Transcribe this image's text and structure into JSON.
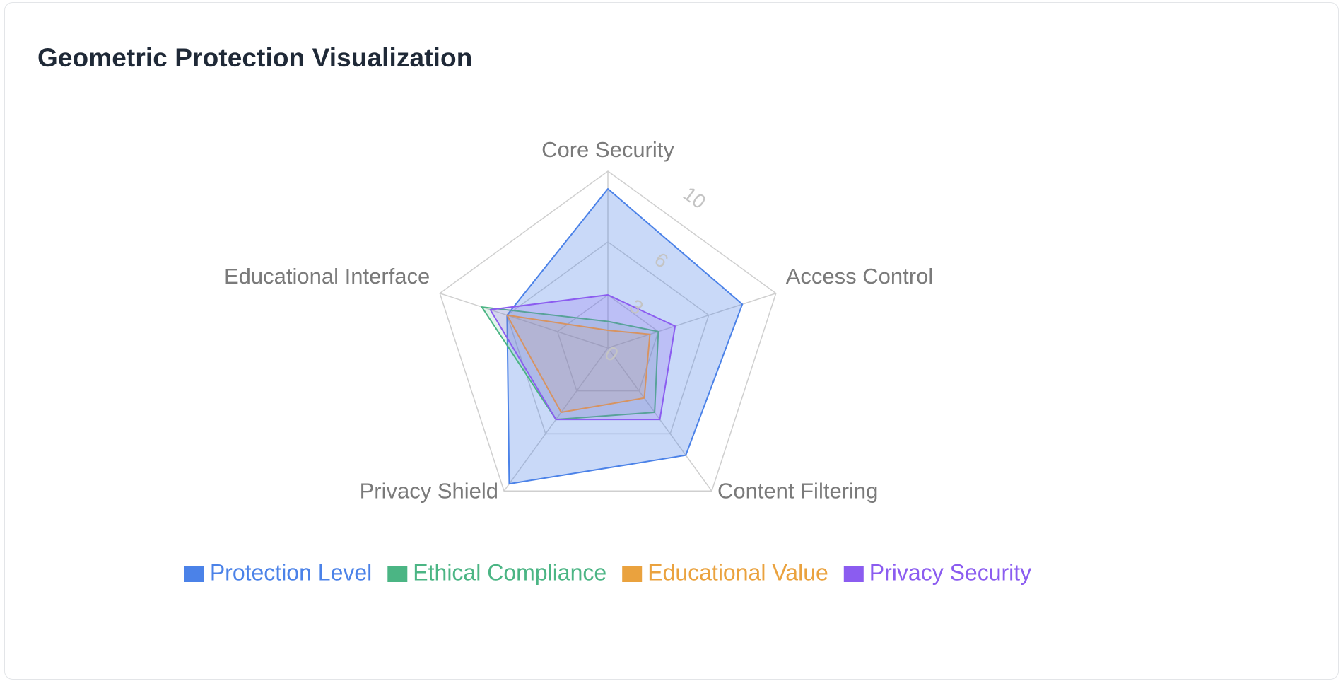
{
  "card": {
    "title": "Geometric Protection Visualization"
  },
  "chart_data": {
    "type": "radar",
    "axes": [
      "Core Security",
      "Access Control",
      "Content Filtering",
      "Privacy Shield",
      "Educational Interface"
    ],
    "radial_range": [
      0,
      10
    ],
    "radial_ticks": [
      0,
      3,
      6,
      10
    ],
    "radial_tick_labels": [
      "0",
      "3",
      "6",
      "10"
    ],
    "legend_position": "bottom",
    "series": [
      {
        "name": "Protection Level",
        "color": "#4b82e8",
        "fill": "rgba(75,130,232,0.30)",
        "values": [
          9.0,
          8.0,
          7.5,
          9.5,
          6.0
        ]
      },
      {
        "name": "Ethical Compliance",
        "color": "#4bb584",
        "fill": "rgba(75,181,132,0.15)",
        "values": [
          1.5,
          3.0,
          4.5,
          5.0,
          7.5
        ]
      },
      {
        "name": "Educational Value",
        "color": "#eaa23e",
        "fill": "rgba(234,162,62,0.15)",
        "values": [
          1.0,
          2.5,
          3.5,
          4.5,
          6.0
        ]
      },
      {
        "name": "Privacy Security",
        "color": "#8b5cf0",
        "fill": "rgba(139,92,240,0.20)",
        "values": [
          3.0,
          4.0,
          5.0,
          5.0,
          7.0
        ]
      }
    ]
  }
}
